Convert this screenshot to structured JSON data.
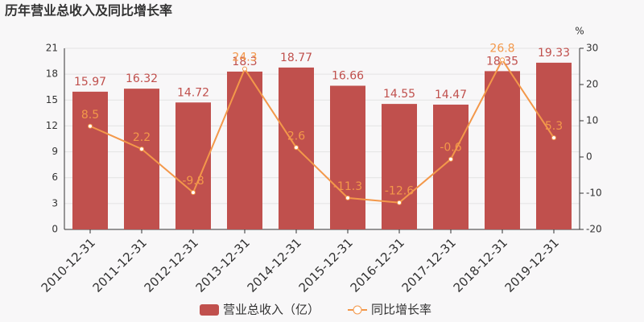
{
  "chart_data": {
    "type": "bar_line",
    "title": "历年营业总收入及同比增长率",
    "y2_label": "%",
    "categories": [
      "2010-12-31",
      "2011-12-31",
      "2012-12-31",
      "2013-12-31",
      "2014-12-31",
      "2015-12-31",
      "2016-12-31",
      "2017-12-31",
      "2018-12-31",
      "2019-12-31"
    ],
    "series": [
      {
        "name": "营业总收入（亿）",
        "color": "#c0504d",
        "type": "bar",
        "values": [
          15.97,
          16.32,
          14.72,
          18.3,
          18.77,
          16.66,
          14.55,
          14.47,
          18.35,
          19.33
        ]
      },
      {
        "name": "同比增长率",
        "color": "#f3984a",
        "type": "line",
        "axis": "y2",
        "values": [
          8.5,
          2.2,
          -9.8,
          24.3,
          2.6,
          -11.3,
          -12.6,
          -0.6,
          26.8,
          5.3
        ]
      }
    ],
    "ylim": [
      0,
      21
    ],
    "yticks": [
      0,
      3,
      6,
      9,
      12,
      15,
      18,
      21
    ],
    "y2lim": [
      -20,
      30
    ],
    "y2ticks": [
      -20,
      -10,
      0,
      10,
      20,
      30
    ],
    "grid": true
  }
}
